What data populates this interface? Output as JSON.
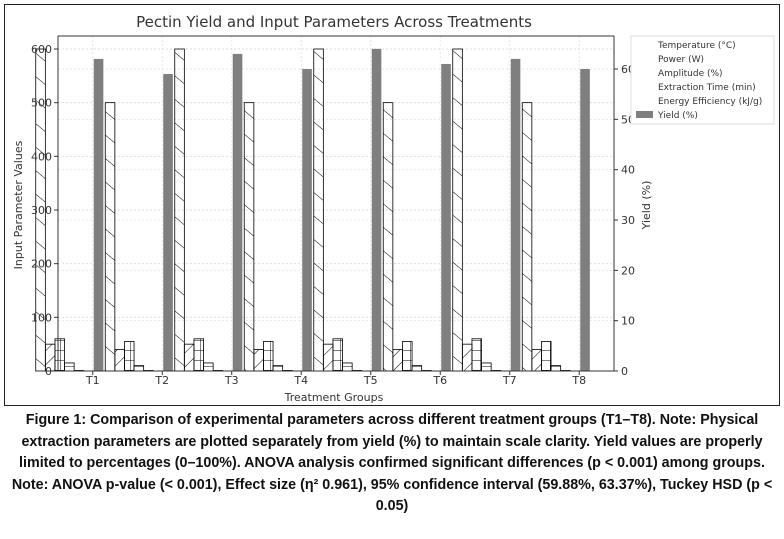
{
  "chart_data": {
    "type": "bar",
    "title": "Pectin Yield and Input Parameters Across Treatments",
    "xlabel": "Treatment Groups",
    "ylabel": "Input Parameter Values",
    "y2label": "Yield (%)",
    "ylim": [
      0,
      620
    ],
    "y2lim": [
      0,
      66
    ],
    "yticks": [
      0,
      100,
      200,
      300,
      400,
      500,
      600
    ],
    "y2ticks": [
      0,
      10,
      20,
      30,
      40,
      50,
      60
    ],
    "grid": true,
    "legend_placement": "top-right",
    "categories": [
      "T1",
      "T2",
      "T3",
      "T4",
      "T5",
      "T6",
      "T7",
      "T8"
    ],
    "series": [
      {
        "name": "Temperature (°C)",
        "hatch": "/",
        "values": [
          600,
          500,
          600,
          500,
          600,
          500,
          600,
          500
        ]
      },
      {
        "name": "Power (W)",
        "hatch": "\\",
        "values": [
          50,
          40,
          50,
          40,
          50,
          40,
          50,
          40
        ]
      },
      {
        "name": "Amplitude (%)",
        "hatch": "+",
        "values": [
          60,
          55,
          60,
          55,
          60,
          55,
          60,
          55
        ]
      },
      {
        "name": "Extraction Time (min)",
        "hatch": "-",
        "values": [
          15,
          10,
          15,
          10,
          15,
          10,
          15,
          10
        ]
      },
      {
        "name": "Energy Efficiency (kJ/g)",
        "hatch": "",
        "values": [
          1,
          1,
          1,
          1,
          1,
          1,
          1,
          1
        ]
      },
      {
        "name": "Yield (%)",
        "axis": "right",
        "color": "#7f7f7f",
        "values": [
          62,
          59,
          63,
          60,
          64,
          61,
          62,
          60
        ]
      }
    ]
  },
  "caption": "Figure 1: Comparison of experimental parameters across different treatment groups (T1–T8). Note: Physical extraction parameters are plotted separately from yield (%) to maintain scale clarity. Yield values are properly limited to percentages (0–100%). ANOVA analysis confirmed significant differences (p < 0.001) among groups. Note:  ANOVA p-value (< 0.001), Effect size (η² 0.961), 95% confidence interval (59.88%, 63.37%), Tuckey HSD (p < 0.05)"
}
